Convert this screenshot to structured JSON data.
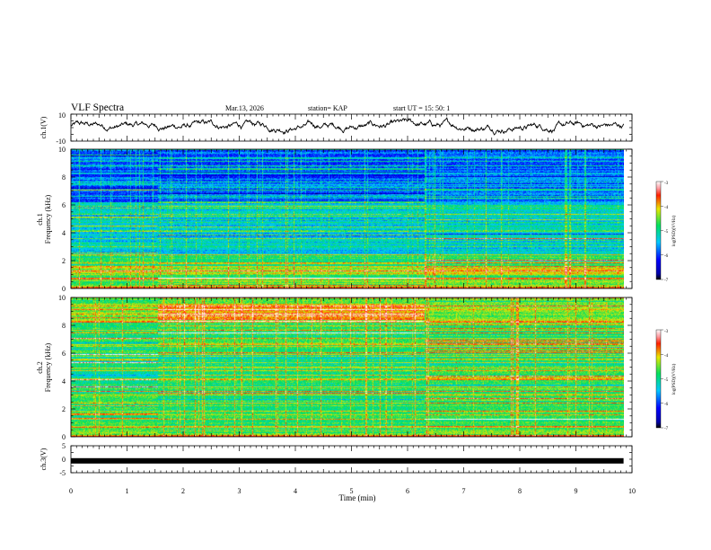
{
  "header": {
    "title": "VLF Spectra",
    "date": "Mar.13, 2026",
    "station": "station= KAP",
    "start": "start  UT  =   15: 50: 1"
  },
  "colors": {
    "background": "#ffffff",
    "axis": "#000000",
    "waveform": "#000000"
  },
  "chart_data": [
    {
      "type": "line",
      "name": "ch1-waveform",
      "ylabel": "ch.1(V)",
      "ylim": [
        -10,
        10
      ],
      "yticks": [
        "10",
        "-10"
      ],
      "x_range_min": [
        0,
        9.85
      ],
      "description_values": "noisy voltage trace mostly between -4 and +6 V"
    },
    {
      "type": "heatmap",
      "name": "ch1-spectrogram",
      "ylabel": "ch.1",
      "ylabel2": "Frequency (kHz)",
      "ylim": [
        0,
        10
      ],
      "yticks": [
        "0",
        "2",
        "4",
        "6",
        "8",
        "10"
      ],
      "colorbar": {
        "label": "log(PSD)(V²/Hz)",
        "ticks": [
          "-3",
          "-4",
          "-5",
          "-6",
          "-7"
        ],
        "range": [
          -7,
          -3
        ]
      },
      "segments_min": [
        0,
        1.55,
        6.3,
        9.85
      ]
    },
    {
      "type": "heatmap",
      "name": "ch2-spectrogram",
      "ylabel": "ch.2",
      "ylabel2": "Frequency (kHz)",
      "ylim": [
        0,
        10
      ],
      "yticks": [
        "0",
        "2",
        "4",
        "6",
        "8",
        "10"
      ],
      "colorbar": {
        "label": "log(PSD)(V²/Hz)",
        "ticks": [
          "-3",
          "-4",
          "-5",
          "-6",
          "-7"
        ],
        "range": [
          -7,
          -3
        ]
      },
      "segments_min": [
        0,
        1.55,
        6.3,
        9.85
      ]
    },
    {
      "type": "line",
      "name": "ch3-trace",
      "ylabel": "ch.3(V)",
      "ylim": [
        -5,
        5
      ],
      "yticks": [
        "5",
        "0",
        "-5"
      ],
      "level": -0.6,
      "x_range_min": [
        0,
        9.85
      ]
    }
  ],
  "xaxis": {
    "label": "Time  (min)",
    "range": [
      0,
      10
    ],
    "ticks": [
      "0",
      "1",
      "2",
      "3",
      "4",
      "5",
      "6",
      "7",
      "8",
      "9",
      "10"
    ]
  }
}
